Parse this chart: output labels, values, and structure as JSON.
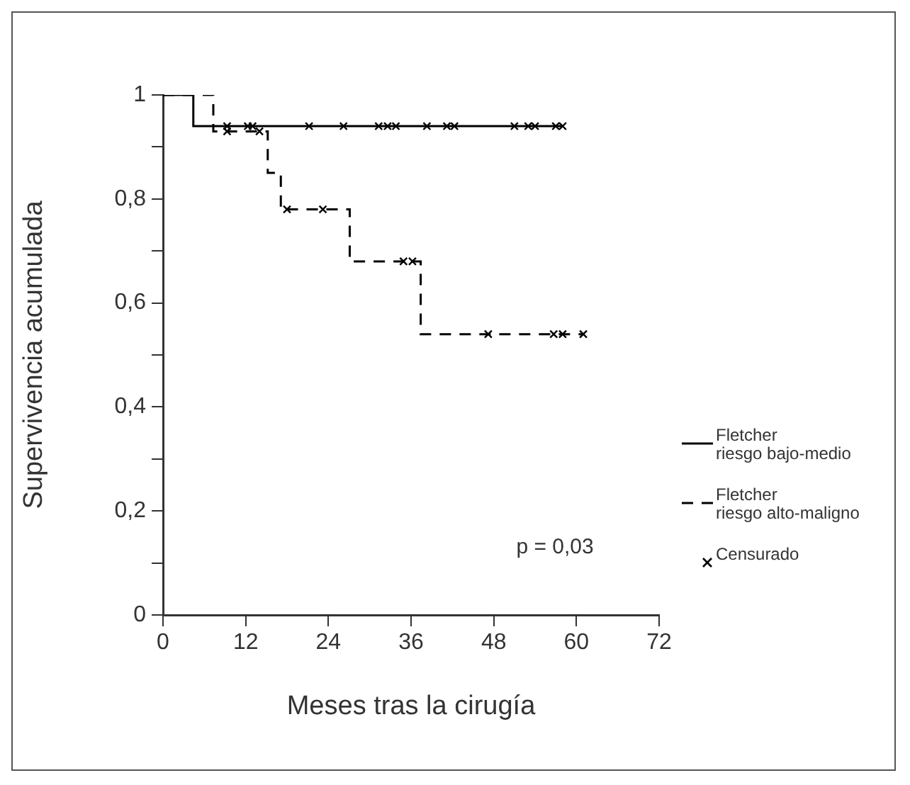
{
  "chart_data": {
    "type": "step",
    "xlabel": "Meses tras la cirugía",
    "ylabel": "Supervivencia acumulada",
    "xlim": [
      0,
      72
    ],
    "xticks": [
      0,
      12,
      24,
      36,
      48,
      60,
      72
    ],
    "ylim": [
      0,
      1
    ],
    "yticks": [
      0,
      {
        "value": 0.1,
        "label": null
      },
      {
        "value": 0.2,
        "label": "0,2"
      },
      {
        "value": 0.3,
        "label": null
      },
      {
        "value": 0.4,
        "label": "0,4"
      },
      {
        "value": 0.5,
        "label": null
      },
      {
        "value": 0.6,
        "label": "0,6"
      },
      {
        "value": 0.7,
        "label": null
      },
      {
        "value": 0.8,
        "label": "0,8"
      },
      {
        "value": 0.9,
        "label": null
      },
      1
    ],
    "grid": false,
    "legend": "right",
    "annotations": [
      "p = 0,03"
    ],
    "series": [
      {
        "name": "Fletcher riesgo bajo-medio",
        "color": "#000000",
        "line_style": "solid",
        "marker": "none",
        "x": [
          0,
          4.4,
          58
        ],
        "values": [
          1,
          0.94,
          0.94
        ]
      },
      {
        "name": "Fletcher riesgo alto-maligno",
        "color": "#000000",
        "line_style": "dashed",
        "marker": "none",
        "x": [
          0,
          7.3,
          15.2,
          17.1,
          27.1,
          37.4,
          61
        ],
        "values": [
          1,
          0.93,
          0.85,
          0.78,
          0.68,
          0.54,
          0.54
        ]
      },
      {
        "name": "Censurado",
        "type": "scatter",
        "color": "#000000",
        "marker": "cross",
        "x": [
          9.3,
          12.3,
          13,
          21.2,
          26.2,
          31.3,
          32.6,
          33.8,
          38.3,
          41.2,
          42.3,
          51,
          53,
          54,
          57,
          58,
          9.3,
          14,
          18,
          23.2,
          34.9,
          36.2,
          47.2,
          56.7,
          58,
          61
        ],
        "values": [
          0.94,
          0.94,
          0.94,
          0.94,
          0.94,
          0.94,
          0.94,
          0.94,
          0.94,
          0.94,
          0.94,
          0.94,
          0.94,
          0.94,
          0.94,
          0.94,
          0.93,
          0.93,
          0.78,
          0.78,
          0.68,
          0.68,
          0.54,
          0.54,
          0.54,
          0.54
        ]
      }
    ]
  }
}
